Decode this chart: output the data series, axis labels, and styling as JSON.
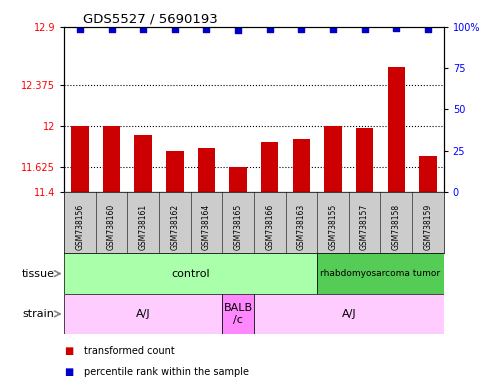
{
  "title": "GDS5527 / 5690193",
  "samples": [
    "GSM738156",
    "GSM738160",
    "GSM738161",
    "GSM738162",
    "GSM738164",
    "GSM738165",
    "GSM738166",
    "GSM738163",
    "GSM738155",
    "GSM738157",
    "GSM738158",
    "GSM738159"
  ],
  "bar_values": [
    12.0,
    12.0,
    11.92,
    11.77,
    11.8,
    11.63,
    11.85,
    11.88,
    12.0,
    11.98,
    12.54,
    11.73
  ],
  "percentile_values": [
    99,
    99,
    99,
    99,
    99,
    98,
    99,
    99,
    99,
    99,
    99.5,
    99
  ],
  "ylim_left": [
    11.4,
    12.9
  ],
  "ylim_right": [
    0,
    100
  ],
  "yticks_left": [
    11.4,
    11.625,
    12.0,
    12.375,
    12.9
  ],
  "ytick_labels_left": [
    "11.4",
    "11.625",
    "12",
    "12.375",
    "12.9"
  ],
  "yticks_right": [
    0,
    25,
    50,
    75,
    100
  ],
  "ytick_labels_right": [
    "0",
    "25",
    "50",
    "75",
    "100%"
  ],
  "hlines": [
    11.625,
    12.0,
    12.375
  ],
  "bar_color": "#cc0000",
  "dot_color": "#0000cc",
  "tissue_groups": [
    {
      "label": "control",
      "start": 0,
      "end": 8,
      "color": "#aaffaa"
    },
    {
      "label": "rhabdomyosarcoma tumor",
      "start": 8,
      "end": 12,
      "color": "#55cc55"
    }
  ],
  "strain_groups": [
    {
      "label": "A/J",
      "start": 0,
      "end": 5,
      "color": "#ffccff"
    },
    {
      "label": "BALB\n/c",
      "start": 5,
      "end": 6,
      "color": "#ff88ff"
    },
    {
      "label": "A/J",
      "start": 6,
      "end": 12,
      "color": "#ffccff"
    }
  ],
  "legend_items": [
    {
      "color": "#cc0000",
      "label": "transformed count"
    },
    {
      "color": "#0000cc",
      "label": "percentile rank within the sample"
    }
  ],
  "tissue_label": "tissue",
  "strain_label": "strain",
  "plot_bg_color": "#ffffff",
  "sample_bg_color": "#cccccc",
  "bar_width": 0.55
}
